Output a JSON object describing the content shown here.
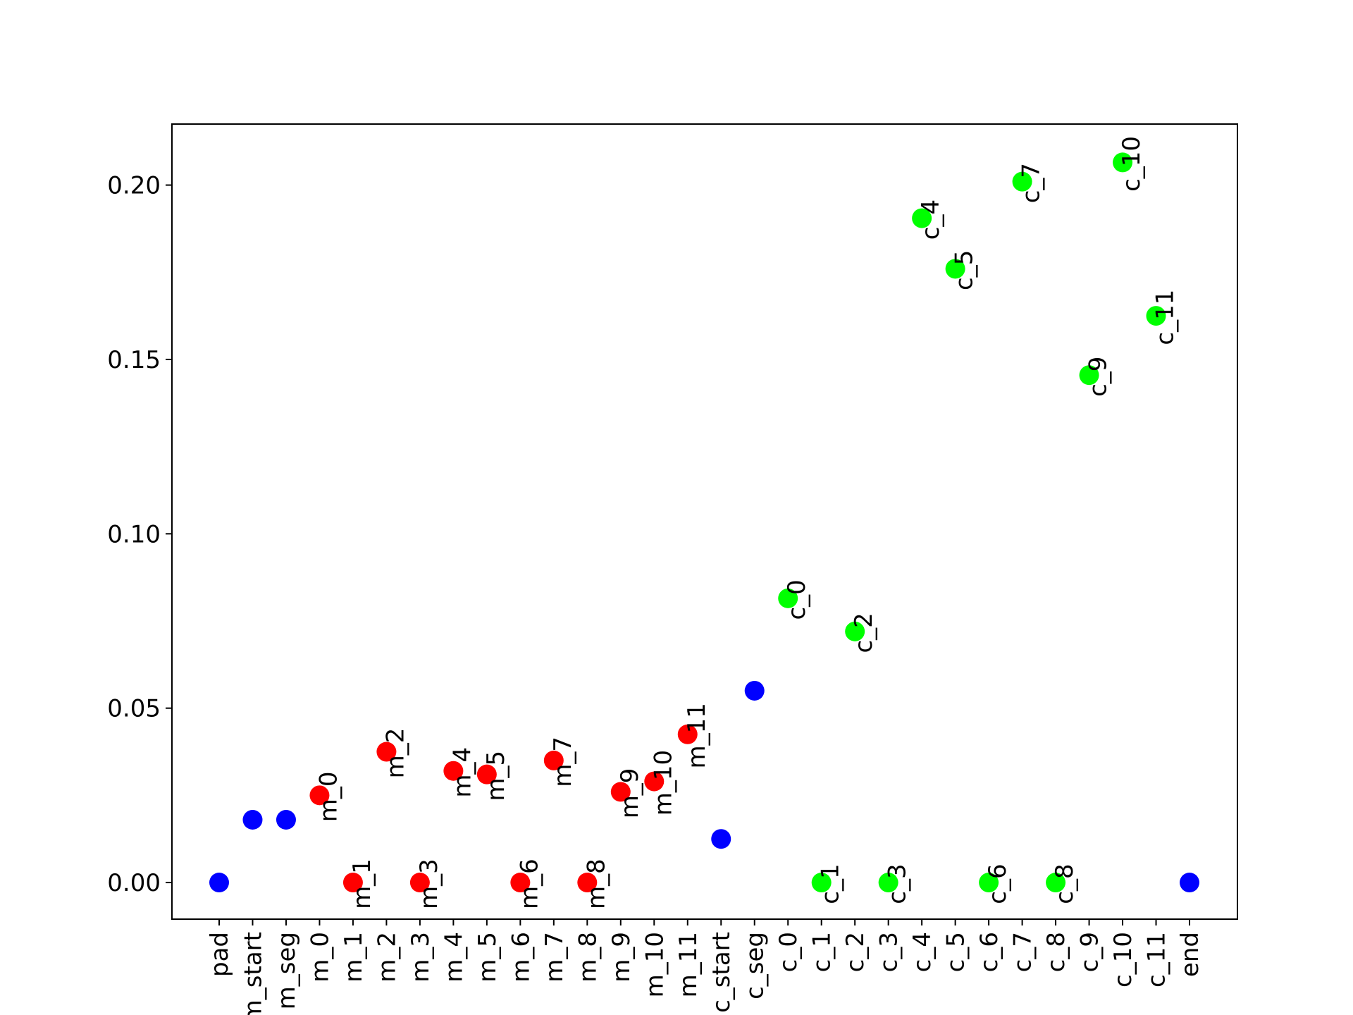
{
  "chart_data": {
    "type": "scatter",
    "title": "",
    "xlabel": "",
    "ylabel": "",
    "ylim": [
      -0.0105,
      0.2175
    ],
    "yticks": [
      "0.00",
      "0.05",
      "0.10",
      "0.15",
      "0.20"
    ],
    "ytick_values": [
      0.0,
      0.05,
      0.1,
      0.15,
      0.2
    ],
    "grid": false,
    "colors": {
      "special": "#0000ff",
      "m": "#ff0000",
      "c": "#00ff00"
    },
    "categories": [
      "pad",
      "m_start",
      "m_seg",
      "m_0",
      "m_1",
      "m_2",
      "m_3",
      "m_4",
      "m_5",
      "m_6",
      "m_7",
      "m_8",
      "m_9",
      "m_10",
      "m_11",
      "c_start",
      "c_seg",
      "c_0",
      "c_1",
      "c_2",
      "c_3",
      "c_4",
      "c_5",
      "c_6",
      "c_7",
      "c_8",
      "c_9",
      "c_10",
      "c_11",
      "end"
    ],
    "values": [
      0.0,
      0.018,
      0.018,
      0.025,
      0.0,
      0.0375,
      0.0,
      0.032,
      0.031,
      0.0,
      0.035,
      0.0,
      0.026,
      0.029,
      0.0425,
      0.0125,
      0.055,
      0.0815,
      0.0,
      0.072,
      0.0,
      0.1905,
      0.176,
      0.0,
      0.201,
      0.0,
      0.1455,
      0.2065,
      0.1625,
      0.0
    ],
    "groups": [
      "special",
      "special",
      "special",
      "m",
      "m",
      "m",
      "m",
      "m",
      "m",
      "m",
      "m",
      "m",
      "m",
      "m",
      "m",
      "special",
      "special",
      "c",
      "c",
      "c",
      "c",
      "c",
      "c",
      "c",
      "c",
      "c",
      "c",
      "c",
      "c",
      "special"
    ],
    "point_labels": [
      "",
      "",
      "",
      "m_0",
      "m_1",
      "m_2",
      "m_3",
      "m_4",
      "m_5",
      "m_6",
      "m_7",
      "m_8",
      "m_9",
      "m_10",
      "m_11",
      "",
      "",
      "c_0",
      "c_1",
      "c_2",
      "c_3",
      "c_4",
      "c_5",
      "c_6",
      "c_7",
      "c_8",
      "c_9",
      "c_10",
      "c_11",
      ""
    ]
  }
}
